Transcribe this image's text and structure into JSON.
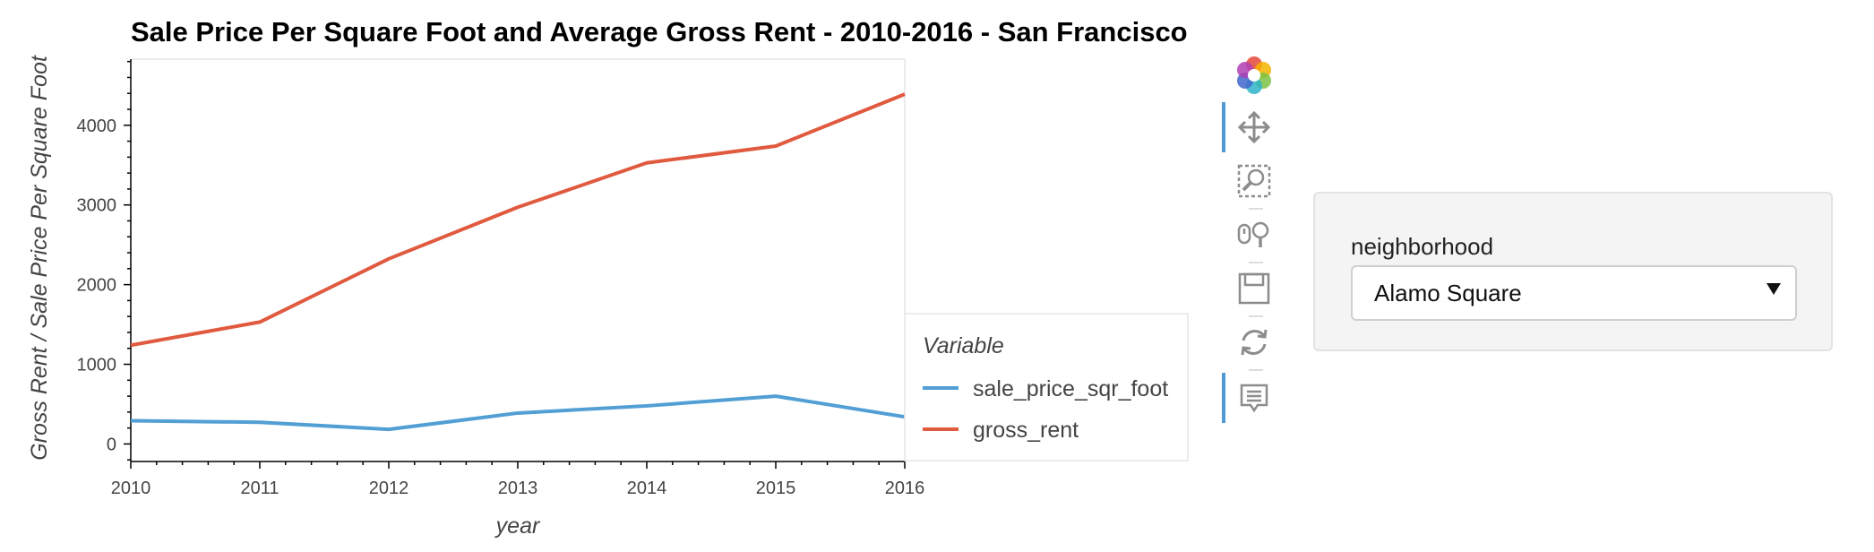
{
  "chart_data": {
    "type": "line",
    "title": "Sale Price Per Square Foot and Average Gross Rent - 2010-2016 - San Francisco",
    "xlabel": "year",
    "ylabel": "Gross Rent / Sale Price Per Square Foot",
    "x": [
      2010,
      2011,
      2012,
      2013,
      2014,
      2015,
      2016
    ],
    "xlim": [
      2010,
      2016
    ],
    "ylim": [
      -220,
      4830
    ],
    "yticks": [
      0,
      1000,
      2000,
      3000,
      4000
    ],
    "x_tick_labels": [
      "2010",
      "2011",
      "2012",
      "2013",
      "2014",
      "2015",
      "2016"
    ],
    "y_tick_labels": [
      "0",
      "1000",
      "2000",
      "3000",
      "4000"
    ],
    "grid": false,
    "legend": {
      "title": "Variable",
      "placement": "right"
    },
    "series": [
      {
        "name": "sale_price_sqr_foot",
        "color": "#519fd4",
        "values": [
          292,
          272,
          183,
          388,
          478,
          600,
          340
        ]
      },
      {
        "name": "gross_rent",
        "color": "#e05a3f",
        "values": [
          1239,
          1530,
          2324,
          2971,
          3528,
          3739,
          4390
        ]
      }
    ]
  },
  "toolbar": {
    "tools": [
      {
        "icon": "bokeh-logo-icon"
      },
      {
        "icon": "pan-icon",
        "active": true
      },
      {
        "icon": "box-zoom-icon"
      },
      {
        "icon": "wheel-zoom-icon"
      },
      {
        "icon": "save-icon"
      },
      {
        "icon": "reset-icon"
      },
      {
        "icon": "hover-icon",
        "active": true
      }
    ]
  },
  "widget": {
    "label": "neighborhood",
    "selected": "Alamo Square"
  }
}
